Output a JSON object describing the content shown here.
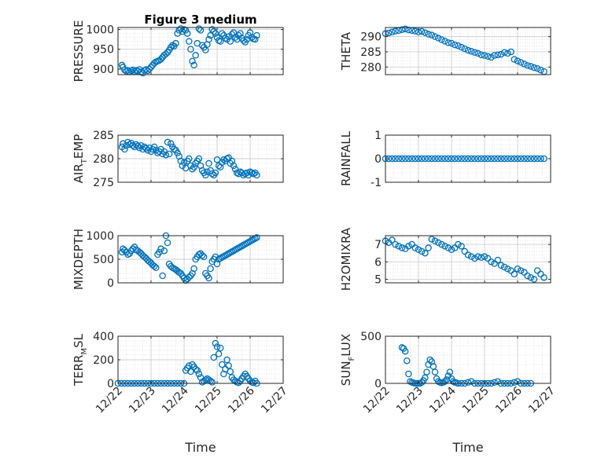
{
  "figure": {
    "title": "Figure 3 medium"
  },
  "chart_data": [
    {
      "type": "scatter",
      "title": "Figure 3 medium",
      "ylabel": "PRESSURE",
      "ylim": [
        886,
        1005
      ],
      "yticks": [
        900,
        950,
        1000
      ],
      "ytick_labels": [
        "900",
        "950",
        "1000"
      ],
      "xlim": [
        0,
        5
      ],
      "xticks": [
        0,
        1,
        2,
        3,
        4,
        5
      ],
      "xtick_labels": [
        "12/22",
        "12/23",
        "12/24",
        "12/25",
        "12/26",
        "12/27"
      ],
      "show_xtick_labels": false,
      "xlabel": "",
      "grid": true,
      "marker_color": "#0072BD",
      "x": [
        0.12,
        0.15,
        0.2,
        0.25,
        0.3,
        0.35,
        0.4,
        0.45,
        0.5,
        0.55,
        0.6,
        0.65,
        0.7,
        0.75,
        0.8,
        0.85,
        0.9,
        0.95,
        1.0,
        1.05,
        1.1,
        1.15,
        1.2,
        1.25,
        1.3,
        1.35,
        1.4,
        1.45,
        1.5,
        1.55,
        1.6,
        1.65,
        1.7,
        1.75,
        1.8,
        1.85,
        1.9,
        1.95,
        2.0,
        2.05,
        2.1,
        2.15,
        2.2,
        2.25,
        2.3,
        2.35,
        2.4,
        2.45,
        2.5,
        2.55,
        2.6,
        2.65,
        2.7,
        2.75,
        2.8,
        2.85,
        2.9,
        2.95,
        3.0,
        3.05,
        3.1,
        3.15,
        3.2,
        3.25,
        3.3,
        3.35,
        3.4,
        3.45,
        3.5,
        3.55,
        3.6,
        3.65,
        3.7,
        3.75,
        3.8,
        3.85,
        3.9,
        3.95,
        4.0,
        4.05,
        4.1,
        4.15,
        4.2
      ],
      "y": [
        910,
        905,
        898,
        895,
        897,
        893,
        896,
        898,
        894,
        897,
        895,
        899,
        893,
        890,
        897,
        899,
        896,
        900,
        905,
        910,
        915,
        918,
        920,
        922,
        925,
        930,
        935,
        938,
        942,
        948,
        955,
        960,
        958,
        965,
        990,
        998,
        1002,
        995,
        1000,
        998,
        990,
        970,
        950,
        920,
        910,
        935,
        965,
        1002,
        998,
        960,
        955,
        948,
        962,
        975,
        985,
        1000,
        995,
        990,
        980,
        972,
        970,
        990,
        985,
        978,
        975,
        982,
        970,
        988,
        992,
        980,
        975,
        985,
        990,
        978,
        972,
        968,
        975,
        985,
        992,
        980,
        976,
        975,
        985
      ]
    },
    {
      "type": "scatter",
      "ylabel": "THETA",
      "ylim": [
        277.5,
        293
      ],
      "yticks": [
        280,
        285,
        290
      ],
      "ytick_labels": [
        "280",
        "285",
        "290"
      ],
      "xlim": [
        0,
        5
      ],
      "xticks": [
        0,
        1,
        2,
        3,
        4,
        5
      ],
      "xtick_labels": [
        "12/22",
        "12/23",
        "12/24",
        "12/25",
        "12/26",
        "12/27"
      ],
      "show_xtick_labels": false,
      "xlabel": "",
      "grid": true,
      "marker_color": "#0072BD",
      "x": [
        0.0,
        0.1,
        0.2,
        0.3,
        0.4,
        0.5,
        0.6,
        0.7,
        0.8,
        0.9,
        1.0,
        1.1,
        1.2,
        1.3,
        1.4,
        1.5,
        1.6,
        1.7,
        1.8,
        1.9,
        2.0,
        2.1,
        2.2,
        2.3,
        2.4,
        2.5,
        2.6,
        2.7,
        2.8,
        2.9,
        3.0,
        3.1,
        3.2,
        3.3,
        3.4,
        3.5,
        3.6,
        3.7,
        3.8,
        3.9,
        4.0,
        4.1,
        4.2,
        4.3,
        4.4,
        4.5,
        4.6,
        4.7,
        4.8
      ],
      "y": [
        291,
        291.2,
        291.5,
        291.8,
        292,
        292.3,
        292.5,
        292.2,
        292,
        291.8,
        291.5,
        291.7,
        291.3,
        290.8,
        290.5,
        290,
        289.5,
        289,
        288.5,
        288,
        287.8,
        287.3,
        287,
        286.5,
        286,
        285.5,
        285.2,
        284.8,
        284.5,
        284,
        283.8,
        283.5,
        283.2,
        283.8,
        284,
        284.2,
        284.8,
        284.5,
        285,
        282.5,
        282,
        281.5,
        281,
        280.5,
        280.2,
        279.8,
        279.5,
        279,
        278.5
      ]
    },
    {
      "type": "scatter",
      "ylabel": "AIR_TEMP",
      "ylabel_parts": [
        "AIR",
        "T",
        "EMP"
      ],
      "ylim": [
        275,
        285
      ],
      "yticks": [
        275,
        280,
        285
      ],
      "ytick_labels": [
        "275",
        "280",
        "285"
      ],
      "xlim": [
        0,
        5
      ],
      "xticks": [
        0,
        1,
        2,
        3,
        4,
        5
      ],
      "xtick_labels": [
        "12/22",
        "12/23",
        "12/24",
        "12/25",
        "12/26",
        "12/27"
      ],
      "show_xtick_labels": false,
      "xlabel": "",
      "grid": true,
      "marker_color": "#0072BD",
      "x": [
        0.12,
        0.15,
        0.2,
        0.25,
        0.3,
        0.35,
        0.4,
        0.45,
        0.5,
        0.55,
        0.6,
        0.65,
        0.7,
        0.75,
        0.8,
        0.85,
        0.9,
        0.95,
        1.0,
        1.05,
        1.1,
        1.15,
        1.2,
        1.25,
        1.3,
        1.35,
        1.4,
        1.45,
        1.5,
        1.55,
        1.6,
        1.65,
        1.7,
        1.75,
        1.8,
        1.85,
        1.9,
        1.95,
        2.0,
        2.05,
        2.1,
        2.15,
        2.2,
        2.25,
        2.3,
        2.35,
        2.4,
        2.45,
        2.5,
        2.55,
        2.6,
        2.65,
        2.7,
        2.75,
        2.8,
        2.85,
        2.9,
        2.95,
        3.0,
        3.05,
        3.1,
        3.15,
        3.2,
        3.25,
        3.3,
        3.35,
        3.4,
        3.45,
        3.5,
        3.55,
        3.6,
        3.65,
        3.7,
        3.75,
        3.8,
        3.85,
        3.9,
        3.95,
        4.0,
        4.05,
        4.1,
        4.15,
        4.2
      ],
      "y": [
        282.5,
        283.2,
        282,
        282.8,
        283.5,
        283,
        283.3,
        282.8,
        282.5,
        283,
        282.7,
        282.3,
        282.8,
        282,
        282.5,
        282.2,
        281.8,
        282.3,
        281.5,
        282,
        282.5,
        281.8,
        281.2,
        281.5,
        282,
        281,
        281.5,
        280.8,
        283.5,
        281,
        283.2,
        282.5,
        282,
        281.8,
        281.2,
        280.5,
        279.5,
        278.5,
        279.2,
        278,
        279.5,
        280,
        278.5,
        277.8,
        278.2,
        279,
        279.5,
        280,
        278.5,
        277.5,
        277,
        276.5,
        277.2,
        279,
        277.5,
        276.8,
        276.5,
        277,
        279.8,
        278.5,
        278.2,
        279.2,
        279.8,
        279.5,
        280,
        280.2,
        279,
        279.5,
        278.5,
        277.8,
        277,
        276.8,
        277.2,
        277,
        276.5,
        276.8,
        277,
        276.5,
        277.2,
        277,
        276.8,
        277,
        276.5
      ]
    },
    {
      "type": "scatter",
      "ylabel": "RAINFALL",
      "ylim": [
        -1,
        1
      ],
      "yticks": [
        -1,
        0,
        1
      ],
      "ytick_labels": [
        "-1",
        "0",
        "1"
      ],
      "xlim": [
        0,
        5
      ],
      "xticks": [
        0,
        1,
        2,
        3,
        4,
        5
      ],
      "xtick_labels": [
        "12/22",
        "12/23",
        "12/24",
        "12/25",
        "12/26",
        "12/27"
      ],
      "show_xtick_labels": false,
      "xlabel": "",
      "grid": true,
      "marker_color": "#0072BD",
      "x": [
        0.0,
        0.1,
        0.2,
        0.3,
        0.4,
        0.5,
        0.6,
        0.7,
        0.8,
        0.9,
        1.0,
        1.1,
        1.2,
        1.3,
        1.4,
        1.5,
        1.6,
        1.7,
        1.8,
        1.9,
        2.0,
        2.1,
        2.2,
        2.3,
        2.4,
        2.5,
        2.6,
        2.7,
        2.8,
        2.9,
        3.0,
        3.1,
        3.2,
        3.3,
        3.4,
        3.5,
        3.6,
        3.7,
        3.8,
        3.9,
        4.0,
        4.1,
        4.2,
        4.3,
        4.4,
        4.5,
        4.6,
        4.7,
        4.8
      ],
      "y": [
        0,
        0,
        0,
        0,
        0,
        0,
        0,
        0,
        0,
        0,
        0,
        0,
        0,
        0,
        0,
        0,
        0,
        0,
        0,
        0,
        0,
        0,
        0,
        0,
        0,
        0,
        0,
        0,
        0,
        0,
        0,
        0,
        0,
        0,
        0,
        0,
        0,
        0,
        0,
        0,
        0,
        0,
        0,
        0,
        0,
        0,
        0,
        0,
        0
      ]
    },
    {
      "type": "scatter",
      "ylabel": "MIXDEPTH",
      "ylim": [
        0,
        1000
      ],
      "yticks": [
        0,
        500,
        1000
      ],
      "ytick_labels": [
        "0",
        "500",
        "1000"
      ],
      "xlim": [
        0,
        5
      ],
      "xticks": [
        0,
        1,
        2,
        3,
        4,
        5
      ],
      "xtick_labels": [
        "12/22",
        "12/23",
        "12/24",
        "12/25",
        "12/26",
        "12/27"
      ],
      "show_xtick_labels": false,
      "xlabel": "",
      "grid": true,
      "marker_color": "#0072BD",
      "x": [
        0.12,
        0.15,
        0.2,
        0.25,
        0.3,
        0.35,
        0.4,
        0.45,
        0.5,
        0.55,
        0.6,
        0.65,
        0.7,
        0.75,
        0.8,
        0.85,
        0.9,
        0.95,
        1.0,
        1.05,
        1.1,
        1.15,
        1.2,
        1.25,
        1.3,
        1.35,
        1.4,
        1.45,
        1.5,
        1.55,
        1.6,
        1.65,
        1.7,
        1.75,
        1.8,
        1.85,
        1.9,
        1.95,
        2.0,
        2.05,
        2.1,
        2.15,
        2.2,
        2.25,
        2.3,
        2.35,
        2.4,
        2.45,
        2.5,
        2.55,
        2.6,
        2.65,
        2.7,
        2.75,
        2.8,
        2.85,
        2.9,
        2.95,
        3.0,
        3.05,
        3.1,
        3.15,
        3.2,
        3.25,
        3.3,
        3.35,
        3.4,
        3.45,
        3.5,
        3.55,
        3.6,
        3.65,
        3.7,
        3.75,
        3.8,
        3.85,
        3.9,
        3.95,
        4.0,
        4.05,
        4.1,
        4.15,
        4.2
      ],
      "y": [
        650,
        720,
        690,
        650,
        600,
        620,
        680,
        720,
        760,
        700,
        680,
        650,
        620,
        580,
        550,
        520,
        480,
        450,
        420,
        380,
        350,
        320,
        600,
        650,
        720,
        150,
        680,
        1000,
        850,
        400,
        350,
        320,
        300,
        280,
        250,
        220,
        200,
        150,
        100,
        50,
        80,
        120,
        150,
        200,
        300,
        500,
        550,
        600,
        620,
        580,
        550,
        200,
        150,
        100,
        300,
        450,
        500,
        550,
        400,
        500,
        520,
        540,
        560,
        580,
        600,
        620,
        640,
        660,
        680,
        700,
        720,
        740,
        760,
        780,
        800,
        820,
        840,
        860,
        880,
        900,
        920,
        940,
        960
      ]
    },
    {
      "type": "scatter",
      "ylabel": "H2OMIXRA",
      "ylim": [
        4.8,
        7.5
      ],
      "yticks": [
        5,
        6,
        7
      ],
      "ytick_labels": [
        "5",
        "6",
        "7"
      ],
      "xlim": [
        0,
        5
      ],
      "xticks": [
        0,
        1,
        2,
        3,
        4,
        5
      ],
      "xtick_labels": [
        "12/22",
        "12/23",
        "12/24",
        "12/25",
        "12/26",
        "12/27"
      ],
      "show_xtick_labels": false,
      "xlabel": "",
      "grid": true,
      "marker_color": "#0072BD",
      "x": [
        0.0,
        0.1,
        0.2,
        0.3,
        0.4,
        0.5,
        0.6,
        0.7,
        0.8,
        0.9,
        1.0,
        1.1,
        1.2,
        1.3,
        1.4,
        1.5,
        1.6,
        1.7,
        1.8,
        1.9,
        2.0,
        2.1,
        2.2,
        2.3,
        2.4,
        2.5,
        2.6,
        2.7,
        2.8,
        2.9,
        3.0,
        3.1,
        3.2,
        3.3,
        3.4,
        3.5,
        3.6,
        3.7,
        3.8,
        3.9,
        4.0,
        4.1,
        4.2,
        4.3,
        4.4,
        4.5,
        4.6,
        4.7,
        4.8
      ],
      "y": [
        7.2,
        7.1,
        7.25,
        7.0,
        6.9,
        6.8,
        6.75,
        6.9,
        7.0,
        6.8,
        6.7,
        6.6,
        6.5,
        6.8,
        7.3,
        7.2,
        7.1,
        7.0,
        6.9,
        6.8,
        6.7,
        6.8,
        7.0,
        6.9,
        6.6,
        6.4,
        6.3,
        6.2,
        6.3,
        6.25,
        6.3,
        6.2,
        6.0,
        5.9,
        6.1,
        5.8,
        5.7,
        5.6,
        5.5,
        5.3,
        5.6,
        5.5,
        5.4,
        5.2,
        5.1,
        5.0,
        5.5,
        5.3,
        5.1
      ]
    },
    {
      "type": "scatter",
      "ylabel": "TERR_MSL",
      "ylabel_parts": [
        "TERR",
        "M",
        "SL"
      ],
      "ylim": [
        0,
        400
      ],
      "yticks": [
        0,
        200,
        400
      ],
      "ytick_labels": [
        "0",
        "200",
        "400"
      ],
      "xlim": [
        0,
        5
      ],
      "xticks": [
        0,
        1,
        2,
        3,
        4,
        5
      ],
      "xtick_labels": [
        "12/22",
        "12/23",
        "12/24",
        "12/25",
        "12/26",
        "12/27"
      ],
      "show_xtick_labels": true,
      "xlabel": "Time",
      "grid": true,
      "marker_color": "#0072BD",
      "x": [
        0.0,
        0.1,
        0.2,
        0.3,
        0.4,
        0.5,
        0.6,
        0.7,
        0.8,
        0.9,
        1.0,
        1.1,
        1.2,
        1.3,
        1.4,
        1.5,
        1.6,
        1.7,
        1.8,
        1.9,
        2.0,
        2.05,
        2.1,
        2.15,
        2.2,
        2.25,
        2.3,
        2.35,
        2.4,
        2.45,
        2.5,
        2.55,
        2.6,
        2.65,
        2.7,
        2.75,
        2.8,
        2.85,
        2.9,
        2.95,
        3.0,
        3.05,
        3.1,
        3.15,
        3.2,
        3.25,
        3.3,
        3.35,
        3.4,
        3.45,
        3.5,
        3.55,
        3.6,
        3.65,
        3.7,
        3.75,
        3.8,
        3.85,
        3.9,
        3.95,
        4.0,
        4.05,
        4.1,
        4.15,
        4.2
      ],
      "y": [
        0,
        0,
        0,
        0,
        0,
        0,
        0,
        0,
        0,
        0,
        0,
        0,
        0,
        0,
        0,
        0,
        0,
        0,
        0,
        0,
        0,
        110,
        130,
        150,
        100,
        160,
        140,
        120,
        110,
        80,
        50,
        10,
        20,
        30,
        40,
        30,
        20,
        10,
        220,
        340,
        310,
        250,
        300,
        160,
        80,
        120,
        200,
        150,
        100,
        50,
        30,
        20,
        10,
        5,
        20,
        40,
        60,
        80,
        60,
        40,
        20,
        10,
        5,
        20,
        0
      ]
    },
    {
      "type": "scatter",
      "ylabel": "SUN_FLUX",
      "ylabel_parts": [
        "SUN",
        "F",
        "LUX"
      ],
      "ylim": [
        0,
        500
      ],
      "yticks": [
        0,
        500
      ],
      "ytick_labels": [
        "0",
        "500"
      ],
      "xlim": [
        0,
        5
      ],
      "xticks": [
        0,
        1,
        2,
        3,
        4,
        5
      ],
      "xtick_labels": [
        "12/22",
        "12/23",
        "12/24",
        "12/25",
        "12/26",
        "12/27"
      ],
      "show_xtick_labels": true,
      "xlabel": "Time",
      "grid": true,
      "marker_color": "#0072BD",
      "x": [
        0.5,
        0.55,
        0.6,
        0.65,
        0.7,
        0.75,
        0.8,
        0.85,
        0.9,
        0.95,
        1.0,
        1.05,
        1.1,
        1.15,
        1.2,
        1.25,
        1.3,
        1.35,
        1.4,
        1.45,
        1.5,
        1.55,
        1.6,
        1.65,
        1.7,
        1.75,
        1.8,
        1.85,
        1.9,
        1.95,
        2.0,
        2.05,
        2.1,
        2.15,
        2.2,
        2.3,
        2.4,
        2.5,
        2.6,
        2.7,
        2.8,
        2.9,
        3.0,
        3.1,
        3.2,
        3.3,
        3.4,
        3.5,
        3.6,
        3.7,
        3.8,
        3.9,
        4.0,
        4.1,
        4.2,
        4.3,
        4.4
      ],
      "y": [
        380,
        370,
        340,
        240,
        100,
        20,
        10,
        5,
        0,
        0,
        0,
        0,
        10,
        30,
        60,
        120,
        200,
        250,
        230,
        180,
        120,
        50,
        20,
        10,
        5,
        10,
        20,
        40,
        80,
        120,
        50,
        20,
        10,
        5,
        0,
        0,
        0,
        10,
        20,
        0,
        0,
        0,
        0,
        0,
        0,
        10,
        20,
        0,
        0,
        0,
        0,
        10,
        20,
        0,
        0,
        0,
        0
      ]
    }
  ]
}
